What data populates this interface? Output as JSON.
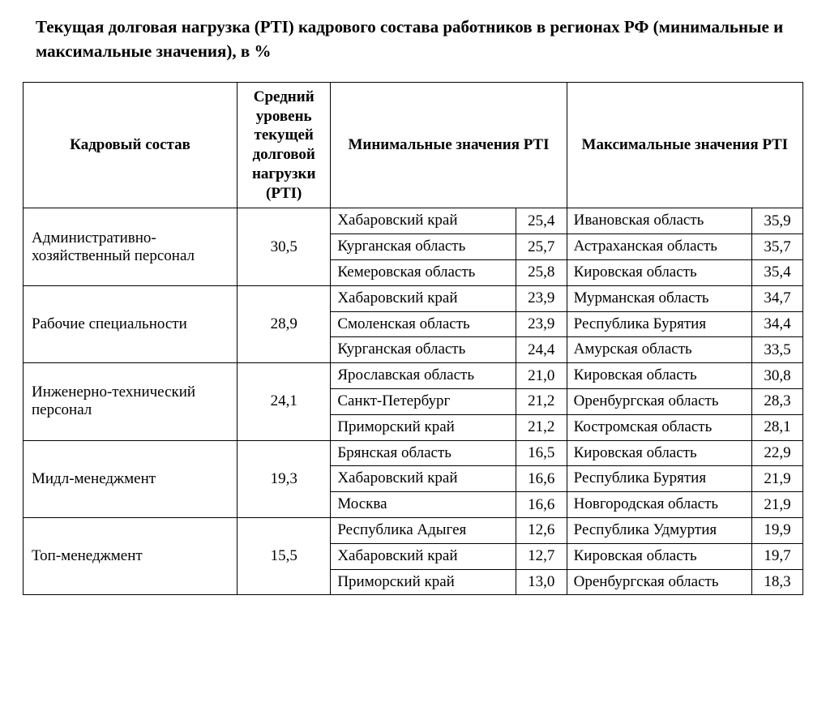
{
  "title": "Текущая долговая нагрузка (PTI) кадрового состава работников в регионах РФ (минимальные и максимальные значения), в %",
  "table": {
    "headers": {
      "category": "Кадровый состав",
      "avg": "Средний уровень текущей долговой нагрузки (PTI)",
      "min": "Минимальные значения PTI",
      "max": "Максимальные значения PTI"
    },
    "groups": [
      {
        "category": "Административно-хозяйственный персонал",
        "avg": "30,5",
        "rows": [
          {
            "min_region": "Хабаровский край",
            "min_val": "25,4",
            "max_region": "Ивановская область",
            "max_val": "35,9"
          },
          {
            "min_region": "Курганская область",
            "min_val": "25,7",
            "max_region": "Астраханская область",
            "max_val": "35,7"
          },
          {
            "min_region": "Кемеровская область",
            "min_val": "25,8",
            "max_region": "Кировская область",
            "max_val": "35,4"
          }
        ]
      },
      {
        "category": "Рабочие специальности",
        "avg": "28,9",
        "rows": [
          {
            "min_region": "Хабаровский край",
            "min_val": "23,9",
            "max_region": "Мурманская область",
            "max_val": "34,7"
          },
          {
            "min_region": "Смоленская область",
            "min_val": "23,9",
            "max_region": "Республика Бурятия",
            "max_val": "34,4"
          },
          {
            "min_region": "Курганская область",
            "min_val": "24,4",
            "max_region": "Амурская область",
            "max_val": "33,5"
          }
        ]
      },
      {
        "category": "Инженерно-технический персонал",
        "avg": "24,1",
        "rows": [
          {
            "min_region": "Ярославская область",
            "min_val": "21,0",
            "max_region": "Кировская область",
            "max_val": "30,8"
          },
          {
            "min_region": "Санкт-Петербург",
            "min_val": "21,2",
            "max_region": "Оренбургская область",
            "max_val": "28,3"
          },
          {
            "min_region": "Приморский край",
            "min_val": "21,2",
            "max_region": "Костромская область",
            "max_val": "28,1"
          }
        ]
      },
      {
        "category": "Мидл-менеджмент",
        "avg": "19,3",
        "rows": [
          {
            "min_region": "Брянская область",
            "min_val": "16,5",
            "max_region": "Кировская область",
            "max_val": "22,9"
          },
          {
            "min_region": "Хабаровский край",
            "min_val": "16,6",
            "max_region": "Республика Бурятия",
            "max_val": "21,9"
          },
          {
            "min_region": "Москва",
            "min_val": "16,6",
            "max_region": "Новгородская область",
            "max_val": "21,9"
          }
        ]
      },
      {
        "category": "Топ-менеджмент",
        "avg": "15,5",
        "rows": [
          {
            "min_region": "Республика Адыгея",
            "min_val": "12,6",
            "max_region": "Республика Удмуртия",
            "max_val": "19,9"
          },
          {
            "min_region": "Хабаровский край",
            "min_val": "12,7",
            "max_region": "Кировская область",
            "max_val": "19,7"
          },
          {
            "min_region": "Приморский край",
            "min_val": "13,0",
            "max_region": "Оренбургская область",
            "max_val": "18,3"
          }
        ]
      }
    ]
  }
}
